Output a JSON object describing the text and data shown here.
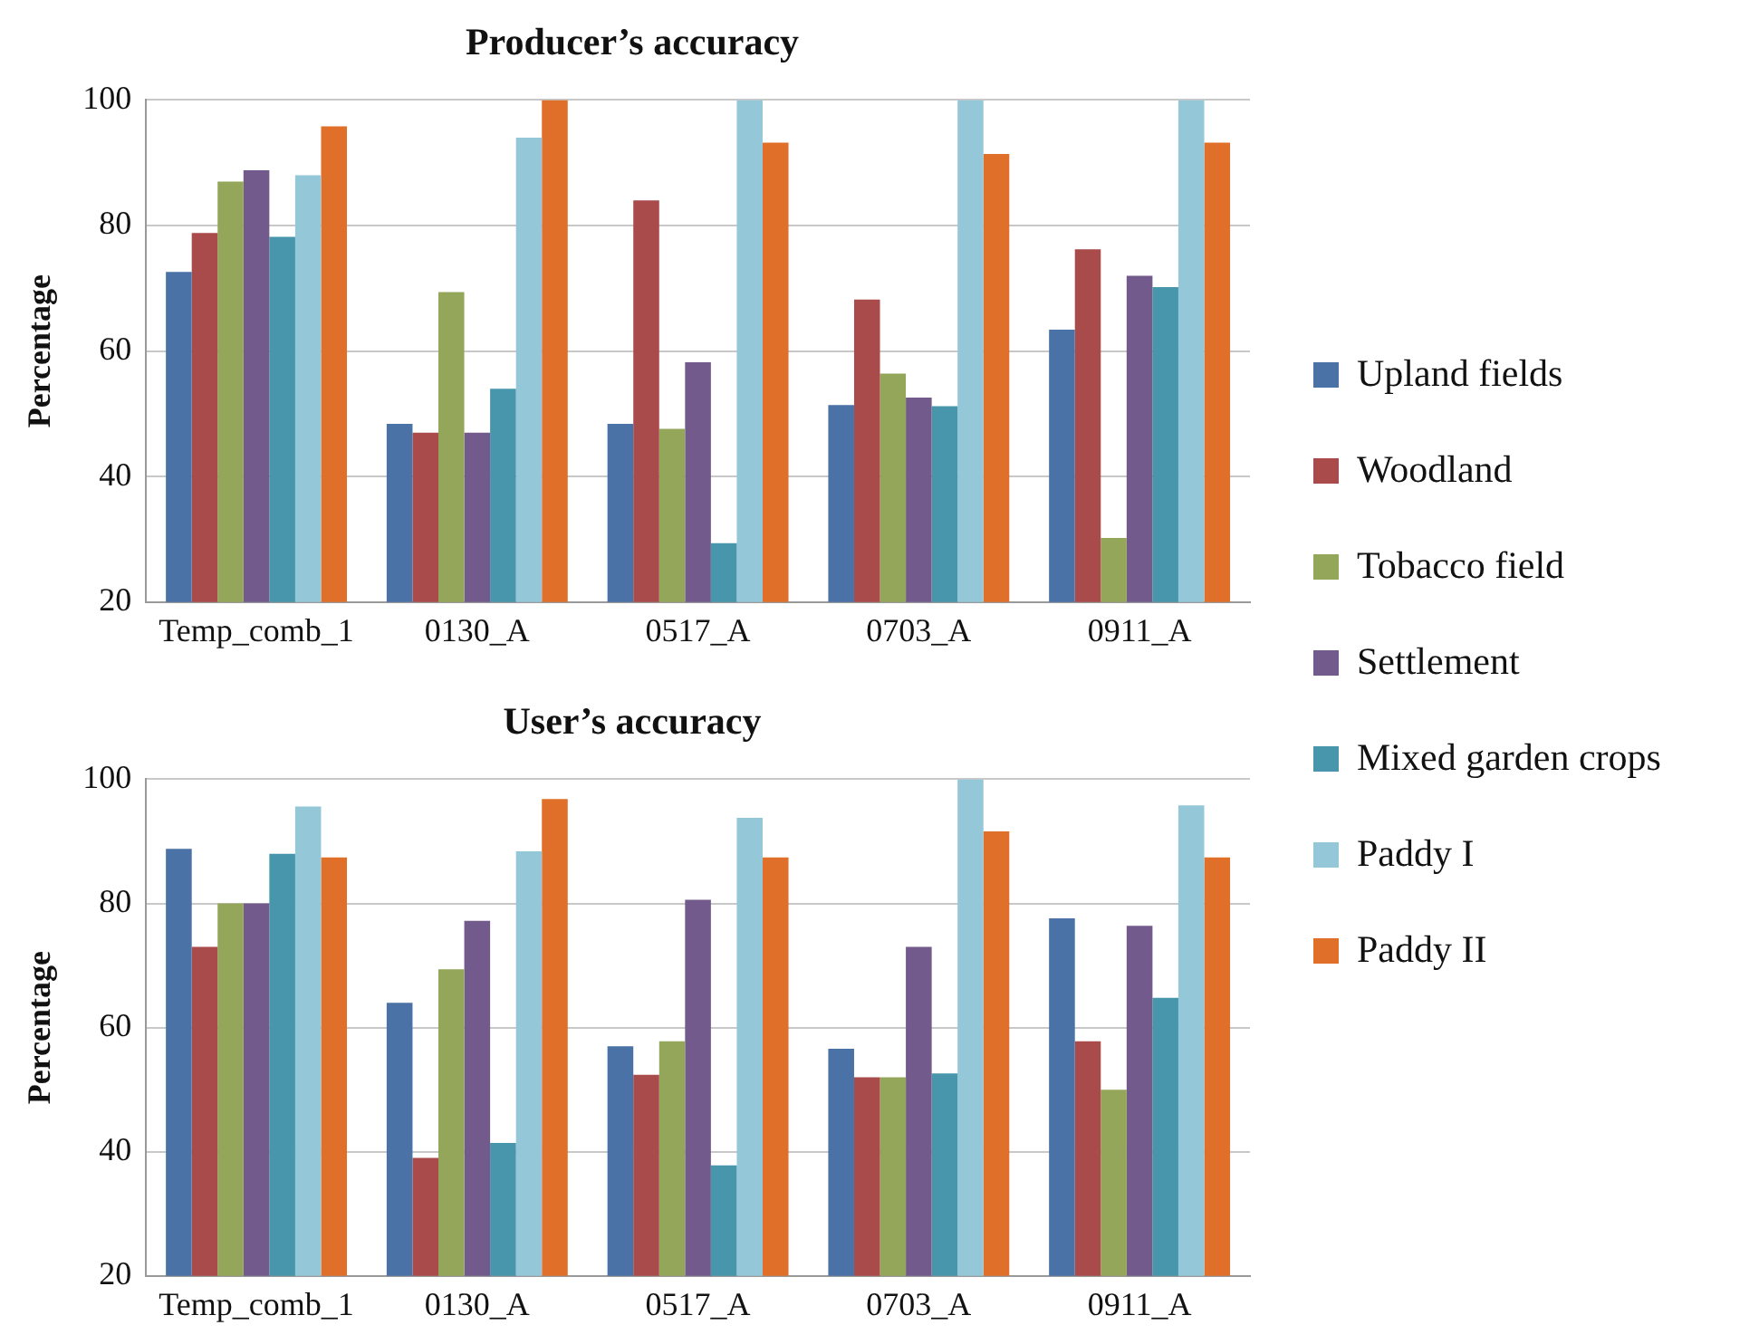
{
  "chart_data": [
    {
      "type": "bar",
      "title": "Producer’s accuracy",
      "ylabel": "Percentage",
      "categories": [
        "Temp_comb_1",
        "0130_A",
        "0517_A",
        "0703_A",
        "0911_A"
      ],
      "ylim": [
        20,
        100
      ],
      "yticks": [
        20,
        40,
        60,
        80,
        100
      ],
      "grid": "y",
      "legend": "right",
      "series": [
        {
          "name": "Upland fields",
          "color": "#4a72a6",
          "values": [
            72.6,
            48.4,
            48.4,
            51.4,
            63.4
          ]
        },
        {
          "name": "Woodland",
          "color": "#a84b4a",
          "values": [
            78.8,
            47,
            84,
            68.2,
            76.2
          ]
        },
        {
          "name": "Tobacco field",
          "color": "#93a65a",
          "values": [
            87,
            69.4,
            47.6,
            56.4,
            30.2
          ]
        },
        {
          "name": "Settlement",
          "color": "#735a8c",
          "values": [
            88.8,
            47,
            58.2,
            52.6,
            72
          ]
        },
        {
          "name": "Mixed garden crops",
          "color": "#4796ab",
          "values": [
            78.2,
            54,
            29.4,
            51.2,
            70.2
          ]
        },
        {
          "name": "Paddy I",
          "color": "#94c8d9",
          "values": [
            88,
            94,
            100,
            100,
            100
          ]
        },
        {
          "name": "Paddy II",
          "color": "#e07029",
          "values": [
            95.8,
            100,
            93.2,
            91.4,
            93.2
          ]
        }
      ]
    },
    {
      "type": "bar",
      "title": "User’s accuracy",
      "ylabel": "Percentage",
      "categories": [
        "Temp_comb_1",
        "0130_A",
        "0517_A",
        "0703_A",
        "0911_A"
      ],
      "ylim": [
        20,
        100
      ],
      "yticks": [
        20,
        40,
        60,
        80,
        100
      ],
      "grid": "y",
      "series": [
        {
          "color": "#4a72a6",
          "values": [
            88.8,
            64,
            57,
            56.6,
            77.6
          ]
        },
        {
          "color": "#a84b4a",
          "values": [
            73,
            39,
            52.4,
            52,
            57.8
          ]
        },
        {
          "color": "#93a65a",
          "values": [
            80,
            69.4,
            57.8,
            52,
            50
          ]
        },
        {
          "color": "#735a8c",
          "values": [
            80,
            77.2,
            80.6,
            73,
            76.4
          ]
        },
        {
          "color": "#4796ab",
          "values": [
            88,
            41.4,
            37.8,
            52.6,
            64.8
          ]
        },
        {
          "color": "#94c8d9",
          "values": [
            95.6,
            88.4,
            93.8,
            100,
            95.8
          ]
        },
        {
          "color": "#e07029",
          "values": [
            87.4,
            96.8,
            87.4,
            91.6,
            87.4
          ]
        }
      ]
    }
  ]
}
